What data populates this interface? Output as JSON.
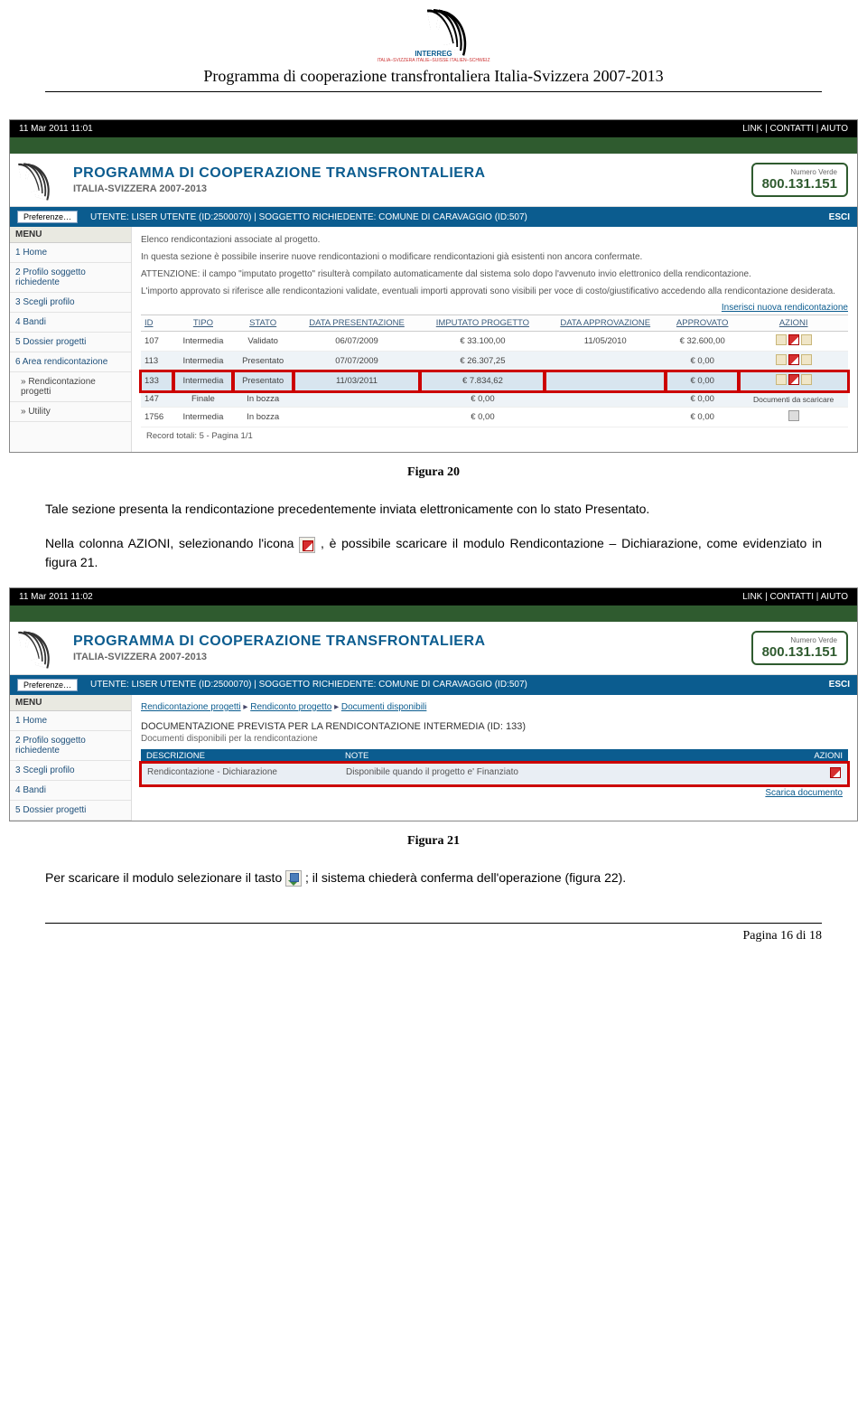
{
  "page": {
    "program_title": "Programma di cooperazione transfrontaliera Italia-Svizzera 2007-2013",
    "footer": "Pagina 16 di 18"
  },
  "captions": {
    "fig20": "Figura 20",
    "fig21": "Figura 21"
  },
  "paragraphs": {
    "p1": "Tale sezione presenta la rendicontazione precedentemente inviata elettronicamente con lo stato Presentato.",
    "p2a": "Nella colonna AZIONI, selezionando l'icona ",
    "p2b": ", è possibile scaricare il modulo Rendicontazione – Dichiarazione, come evidenziato in figura 21.",
    "p3a": "Per scaricare il modulo selezionare il tasto ",
    "p3b": "; il sistema chiederà conferma dell'operazione (figura 22)."
  },
  "screenshot_common": {
    "topbar_links": "LINK  |  CONTATTI  |  AIUTO",
    "banner_l1": "PROGRAMMA DI COOPERAZIONE TRANSFRONTALIERA",
    "banner_l2": "ITALIA-SVIZZERA 2007-2013",
    "phone_label": "Numero Verde",
    "phone": "800.131.151",
    "pref": "Preferenze…",
    "userline": "UTENTE:  LISER UTENTE (ID:2500070)  |  SOGGETTO RICHIEDENTE:  COMUNE DI CARAVAGGIO (ID:507)",
    "esci": "ESCI",
    "menu_header": "MENU",
    "logo_text": "INTERREG",
    "logo_sub": "ITALIA–SVIZZERA ITALIE–SUISSE ITALIEN–SCHWEIZ"
  },
  "screenshot1": {
    "topbar_time": "11 Mar 2011 11:01",
    "menu": [
      "1  Home",
      "2  Profilo soggetto richiedente",
      "3  Scegli profilo",
      "4  Bandi",
      "5  Dossier progetti",
      "6  Area rendicontazione",
      "»  Rendicontazione progetti",
      "»  Utility"
    ],
    "notes": [
      "Elenco rendicontazioni associate al progetto.",
      "In questa sezione è possibile inserire nuove rendicontazioni o modificare rendicontazioni già esistenti non ancora confermate.",
      "ATTENZIONE: il campo \"imputato progetto\" risulterà compilato automaticamente dal sistema solo dopo l'avvenuto invio elettronico della rendicontazione.",
      "L'importo approvato si riferisce alle rendicontazioni validate, eventuali importi approvati sono visibili per voce di costo/giustificativo accedendo alla rendicontazione desiderata."
    ],
    "right_link": "Inserisci nuova rendicontazione",
    "headers": [
      "ID",
      "TIPO",
      "STATO",
      "DATA PRESENTAZIONE",
      "IMPUTATO PROGETTO",
      "DATA APPROVAZIONE",
      "APPROVATO",
      "AZIONI"
    ],
    "rows": [
      {
        "id": "107",
        "tipo": "Intermedia",
        "stato": "Validato",
        "datapr": "06/07/2009",
        "imp": "€ 33.100,00",
        "dataap": "11/05/2010",
        "appr": "€ 32.600,00",
        "hl": false,
        "alt": false,
        "icons": 3
      },
      {
        "id": "113",
        "tipo": "Intermedia",
        "stato": "Presentato",
        "datapr": "07/07/2009",
        "imp": "€ 26.307,25",
        "dataap": "",
        "appr": "€ 0,00",
        "hl": false,
        "alt": true,
        "icons": 3
      },
      {
        "id": "133",
        "tipo": "Intermedia",
        "stato": "Presentato",
        "datapr": "11/03/2011",
        "imp": "€ 7.834,62",
        "dataap": "",
        "appr": "€ 0,00",
        "hl": true,
        "alt": false,
        "icons": 3
      },
      {
        "id": "147",
        "tipo": "Finale",
        "stato": "In bozza",
        "datapr": "",
        "imp": "€ 0,00",
        "dataap": "",
        "appr": "€ 0,00",
        "hl": false,
        "alt": true,
        "icons": 0,
        "extra": "Documenti da scaricare"
      },
      {
        "id": "1756",
        "tipo": "Intermedia",
        "stato": "In bozza",
        "datapr": "",
        "imp": "€ 0,00",
        "dataap": "",
        "appr": "€ 0,00",
        "hl": false,
        "alt": false,
        "icons": 1,
        "trash": true
      }
    ],
    "record_line": "Record totali: 5 - Pagina 1/1"
  },
  "screenshot2": {
    "topbar_time": "11 Mar 2011 11:02",
    "menu": [
      "1  Home",
      "2  Profilo soggetto richiedente",
      "3  Scegli profilo",
      "4  Bandi",
      "5  Dossier progetti"
    ],
    "crumbs": [
      "Rendicontazione progetti",
      "Rendiconto progetto",
      "Documenti disponibili"
    ],
    "doc_title": "DOCUMENTAZIONE PREVISTA PER LA RENDICONTAZIONE INTERMEDIA (ID: 133)",
    "doc_sub": "Documenti disponibili per la rendicontazione",
    "head": [
      "DESCRIZIONE",
      "NOTE",
      "AZIONI"
    ],
    "row": [
      "Rendicontazione - Dichiarazione",
      "Disponibile quando il progetto e' Finanziato",
      ""
    ],
    "scarica": "Scarica documento"
  },
  "colors": {
    "header_blue": "#0b5c8f",
    "green_strip": "#2f5b2f",
    "highlight_red": "#cc0000",
    "row_alt": "#eef3f7"
  }
}
